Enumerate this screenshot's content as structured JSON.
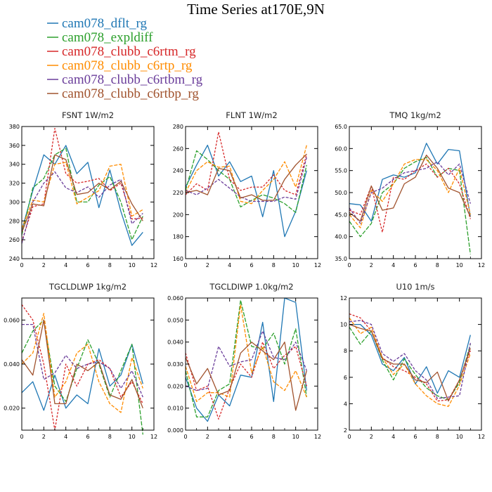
{
  "title": "Time Series at170E,9N",
  "legend": [
    {
      "name": "cam078_dflt_rg",
      "color": "#1f77b4"
    },
    {
      "name": "cam078_expldiff",
      "color": "#2ca02c"
    },
    {
      "name": "cam078_clubb_c6rtm_rg",
      "color": "#d62728"
    },
    {
      "name": "cam078_clubb_c6rtp_rg",
      "color": "#ff8c00"
    },
    {
      "name": "cam078_clubb_c6rtbm_rg",
      "color": "#6a3d9a"
    },
    {
      "name": "cam078_clubb_c6rtbp_rg",
      "color": "#a0522d"
    }
  ],
  "chart_data": [
    {
      "type": "line",
      "title": "FSNT   1W/m2",
      "x": [
        0,
        1,
        2,
        3,
        4,
        5,
        6,
        7,
        8,
        9,
        10,
        11
      ],
      "xlim": [
        0,
        12
      ],
      "xticks": [
        "0",
        "2",
        "4",
        "6",
        "8",
        "10",
        "12"
      ],
      "ylim": [
        240,
        380
      ],
      "yticks": [
        "240",
        "260",
        "280",
        "300",
        "320",
        "340",
        "360",
        "380"
      ],
      "series": [
        {
          "name": "cam078_dflt_rg",
          "values": [
            270,
            312,
            350,
            340,
            360,
            330,
            342,
            294,
            334,
            290,
            254,
            268
          ]
        },
        {
          "name": "cam078_expldiff",
          "values": [
            265,
            315,
            325,
            350,
            357,
            300,
            300,
            318,
            327,
            300,
            260,
            285
          ]
        },
        {
          "name": "cam078_clubb_c6rtm_rg",
          "values": [
            258,
            295,
            298,
            378,
            330,
            320,
            322,
            325,
            312,
            320,
            282,
            283
          ]
        },
        {
          "name": "cam078_clubb_c6rtp_rg",
          "values": [
            272,
            302,
            300,
            340,
            342,
            298,
            305,
            312,
            338,
            340,
            285,
            292
          ]
        },
        {
          "name": "cam078_clubb_c6rtbm_rg",
          "values": [
            256,
            300,
            320,
            332,
            315,
            310,
            316,
            305,
            318,
            324,
            277,
            288
          ]
        },
        {
          "name": "cam078_clubb_c6rtbp_rg",
          "values": [
            268,
            298,
            296,
            350,
            345,
            308,
            310,
            320,
            313,
            322,
            298,
            280
          ]
        }
      ]
    },
    {
      "type": "line",
      "title": "FLNT   1W/m2",
      "x": [
        0,
        1,
        2,
        3,
        4,
        5,
        6,
        7,
        8,
        9,
        10,
        11
      ],
      "xlim": [
        0,
        12
      ],
      "xticks": [
        "0",
        "2",
        "4",
        "6",
        "8",
        "10",
        "12"
      ],
      "ylim": [
        160,
        280
      ],
      "yticks": [
        "160",
        "180",
        "200",
        "220",
        "240",
        "260",
        "280"
      ],
      "series": [
        {
          "name": "cam078_dflt_rg",
          "values": [
            225,
            245,
            263,
            235,
            248,
            230,
            235,
            198,
            240,
            180,
            203,
            240
          ]
        },
        {
          "name": "cam078_expldiff",
          "values": [
            222,
            258,
            250,
            240,
            232,
            207,
            213,
            218,
            215,
            210,
            202,
            245
          ]
        },
        {
          "name": "cam078_clubb_c6rtm_rg",
          "values": [
            218,
            228,
            222,
            275,
            232,
            222,
            225,
            225,
            236,
            222,
            218,
            255
          ]
        },
        {
          "name": "cam078_clubb_c6rtp_rg",
          "values": [
            220,
            240,
            248,
            243,
            244,
            212,
            210,
            222,
            232,
            248,
            225,
            263
          ]
        },
        {
          "name": "cam078_clubb_c6rtbm_rg",
          "values": [
            222,
            218,
            224,
            232,
            224,
            216,
            212,
            212,
            212,
            216,
            214,
            252
          ]
        },
        {
          "name": "cam078_clubb_c6rtbp_rg",
          "values": [
            220,
            222,
            218,
            242,
            240,
            215,
            218,
            213,
            213,
            232,
            245,
            255
          ]
        }
      ]
    },
    {
      "type": "line",
      "title": "TMQ   1kg/m2",
      "x": [
        0,
        1,
        2,
        3,
        4,
        5,
        6,
        7,
        8,
        9,
        10,
        11
      ],
      "xlim": [
        0,
        12
      ],
      "xticks": [
        "0",
        "2",
        "4",
        "6",
        "8",
        "10",
        "12"
      ],
      "ylim": [
        35,
        65
      ],
      "yticks": [
        "35.0",
        "40.0",
        "45.0",
        "50.0",
        "55.0",
        "60.0",
        "65.0"
      ],
      "series": [
        {
          "name": "cam078_dflt_rg",
          "values": [
            47.5,
            47.2,
            43.5,
            53.0,
            54.0,
            53.5,
            54.5,
            61.2,
            56.5,
            59.8,
            59.5,
            44.5
          ]
        },
        {
          "name": "cam078_expldiff",
          "values": [
            43.5,
            40.0,
            43.0,
            50.0,
            52.0,
            55.5,
            57.0,
            58.0,
            53.5,
            55.5,
            55.0,
            36.0
          ]
        },
        {
          "name": "cam078_clubb_c6rtm_rg",
          "values": [
            46.0,
            45.0,
            51.5,
            41.0,
            53.5,
            53.0,
            55.0,
            56.5,
            53.5,
            55.5,
            52.0,
            44.0
          ]
        },
        {
          "name": "cam078_clubb_c6rtp_rg",
          "values": [
            45.0,
            42.0,
            50.5,
            48.0,
            52.0,
            56.5,
            57.5,
            57.5,
            55.0,
            50.0,
            55.5,
            45.0
          ]
        },
        {
          "name": "cam078_clubb_c6rtbm_rg",
          "values": [
            46.5,
            43.0,
            50.0,
            51.0,
            53.0,
            54.5,
            55.0,
            55.5,
            57.0,
            54.0,
            56.5,
            47.5
          ]
        },
        {
          "name": "cam078_clubb_c6rtbp_rg",
          "values": [
            45.5,
            43.5,
            51.5,
            46.0,
            46.5,
            52.0,
            53.5,
            58.5,
            55.5,
            51.0,
            50.0,
            44.5
          ]
        }
      ]
    },
    {
      "type": "line",
      "title": "TGCLDLWP   1kg/m2",
      "x": [
        0,
        1,
        2,
        3,
        4,
        5,
        6,
        7,
        8,
        9,
        10,
        11
      ],
      "xlim": [
        0,
        12
      ],
      "xticks": [
        "0",
        "2",
        "4",
        "6",
        "8",
        "10",
        "12"
      ],
      "ylim": [
        0.01,
        0.07
      ],
      "yticks": [
        "0.020",
        "0.040",
        "0.060"
      ],
      "series": [
        {
          "name": "cam078_dflt_rg",
          "values": [
            0.027,
            0.032,
            0.019,
            0.035,
            0.02,
            0.026,
            0.022,
            0.047,
            0.03,
            0.035,
            0.049,
            0.031
          ]
        },
        {
          "name": "cam078_expldiff",
          "values": [
            0.045,
            0.055,
            0.06,
            0.03,
            0.023,
            0.038,
            0.051,
            0.04,
            0.025,
            0.037,
            0.049,
            0.008
          ]
        },
        {
          "name": "cam078_clubb_c6rtm_rg",
          "values": [
            0.067,
            0.06,
            0.04,
            0.01,
            0.04,
            0.03,
            0.04,
            0.042,
            0.038,
            0.025,
            0.032,
            0.022
          ]
        },
        {
          "name": "cam078_clubb_c6rtp_rg",
          "values": [
            0.04,
            0.045,
            0.063,
            0.025,
            0.032,
            0.045,
            0.049,
            0.032,
            0.022,
            0.018,
            0.043,
            0.029
          ]
        },
        {
          "name": "cam078_clubb_c6rtbm_rg",
          "values": [
            0.058,
            0.058,
            0.033,
            0.036,
            0.044,
            0.038,
            0.04,
            0.041,
            0.038,
            0.029,
            0.037,
            0.025
          ]
        },
        {
          "name": "cam078_clubb_c6rtbp_rg",
          "values": [
            0.042,
            0.035,
            0.06,
            0.022,
            0.022,
            0.04,
            0.037,
            0.041,
            0.026,
            0.024,
            0.033,
            0.02
          ]
        }
      ]
    },
    {
      "type": "line",
      "title": "TGCLDIWP   1.0kg/m2",
      "x": [
        0,
        1,
        2,
        3,
        4,
        5,
        6,
        7,
        8,
        9,
        10,
        11
      ],
      "xlim": [
        0,
        12
      ],
      "xticks": [
        "0",
        "2",
        "4",
        "6",
        "8",
        "10",
        "12"
      ],
      "ylim": [
        0.0,
        0.06
      ],
      "yticks": [
        "0.000",
        "0.010",
        "0.020",
        "0.030",
        "0.040",
        "0.050",
        "0.060"
      ],
      "series": [
        {
          "name": "cam078_dflt_rg",
          "values": [
            0.024,
            0.01,
            0.004,
            0.016,
            0.011,
            0.025,
            0.024,
            0.049,
            0.013,
            0.06,
            0.058,
            0.018
          ]
        },
        {
          "name": "cam078_expldiff",
          "values": [
            0.027,
            0.006,
            0.006,
            0.018,
            0.021,
            0.059,
            0.038,
            0.037,
            0.044,
            0.03,
            0.046,
            0.015
          ]
        },
        {
          "name": "cam078_clubb_c6rtm_rg",
          "values": [
            0.035,
            0.018,
            0.02,
            0.005,
            0.019,
            0.03,
            0.024,
            0.04,
            0.028,
            0.034,
            0.038,
            0.02
          ]
        },
        {
          "name": "cam078_clubb_c6rtp_rg",
          "values": [
            0.029,
            0.013,
            0.017,
            0.017,
            0.015,
            0.057,
            0.026,
            0.038,
            0.022,
            0.018,
            0.027,
            0.015
          ]
        },
        {
          "name": "cam078_clubb_c6rtbm_rg",
          "values": [
            0.02,
            0.018,
            0.019,
            0.038,
            0.029,
            0.031,
            0.032,
            0.045,
            0.033,
            0.032,
            0.04,
            0.027
          ]
        },
        {
          "name": "cam078_clubb_c6rtbp_rg",
          "values": [
            0.033,
            0.021,
            0.028,
            0.016,
            0.018,
            0.035,
            0.04,
            0.036,
            0.032,
            0.04,
            0.009,
            0.027
          ]
        }
      ]
    },
    {
      "type": "line",
      "title": "U10   1m/s",
      "x": [
        0,
        1,
        2,
        3,
        4,
        5,
        6,
        7,
        8,
        9,
        10,
        11
      ],
      "xlim": [
        0,
        12
      ],
      "xticks": [
        "0",
        "2",
        "4",
        "6",
        "8",
        "10",
        "12"
      ],
      "ylim": [
        2,
        12
      ],
      "yticks": [
        "2",
        "4",
        "6",
        "8",
        "10",
        "12"
      ],
      "series": [
        {
          "name": "cam078_dflt_rg",
          "values": [
            10.0,
            10.0,
            9.2,
            7.0,
            6.5,
            7.5,
            5.5,
            6.8,
            4.8,
            6.5,
            6.0,
            9.2
          ]
        },
        {
          "name": "cam078_expldiff",
          "values": [
            9.8,
            8.5,
            9.5,
            7.3,
            5.8,
            7.4,
            6.2,
            5.2,
            4.6,
            4.3,
            5.6,
            8.5
          ]
        },
        {
          "name": "cam078_clubb_c6rtm_rg",
          "values": [
            10.8,
            10.5,
            9.5,
            7.5,
            6.8,
            6.5,
            6.0,
            5.5,
            4.2,
            4.3,
            5.8,
            8.0
          ]
        },
        {
          "name": "cam078_clubb_c6rtp_rg",
          "values": [
            10.5,
            9.3,
            9.8,
            7.5,
            6.2,
            7.0,
            5.5,
            4.6,
            4.0,
            3.8,
            5.4,
            7.8
          ]
        },
        {
          "name": "cam078_clubb_c6rtbm_rg",
          "values": [
            10.2,
            10.3,
            10.0,
            7.8,
            7.2,
            7.8,
            6.5,
            5.8,
            4.4,
            4.5,
            4.6,
            8.6
          ]
        },
        {
          "name": "cam078_clubb_c6rtbp_rg",
          "values": [
            10.0,
            9.7,
            9.5,
            7.4,
            7.0,
            7.0,
            5.8,
            5.6,
            6.4,
            4.2,
            5.8,
            8.2
          ]
        }
      ]
    }
  ]
}
